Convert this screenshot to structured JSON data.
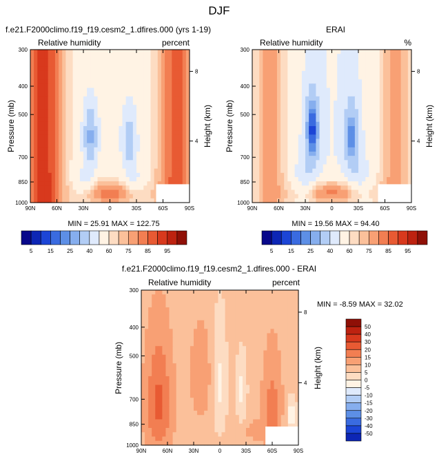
{
  "figure_title": "DJF",
  "chart_data": [
    {
      "type": "heatmap",
      "title": "f.e21.F2000climo.f19_f19.cesm2_1.dfires.000 (yrs 1-19)",
      "left_label": "Relative humidity",
      "right_label": "percent",
      "ylabel": "Pressure (mb)",
      "ylabel_right": "Height (km)",
      "x_ticks": [
        "90N",
        "60N",
        "30N",
        "0",
        "30S",
        "60S",
        "90S"
      ],
      "y_ticks": [
        "300",
        "400",
        "500",
        "700",
        "850",
        "1000"
      ],
      "y_ticks_right": [
        "8",
        "4"
      ],
      "stats": "MIN = 25.91  MAX = 122.75",
      "zlim": [
        25.91,
        122.75
      ]
    },
    {
      "type": "heatmap",
      "title": "ERAI",
      "left_label": "Relative humidity",
      "right_label": "%",
      "ylabel": "Pressure (mb)",
      "ylabel_right": "Height (km)",
      "x_ticks": [
        "90N",
        "60N",
        "30N",
        "0",
        "30S",
        "60S",
        "90S"
      ],
      "y_ticks": [
        "300",
        "400",
        "500",
        "700",
        "850",
        "1000"
      ],
      "y_ticks_right": [
        "8",
        "4"
      ],
      "stats": "MIN = 19.56  MAX = 94.40",
      "zlim": [
        19.56,
        94.4
      ]
    },
    {
      "type": "heatmap",
      "title": "f.e21.F2000climo.f19_f19.cesm2_1.dfires.000 - ERAI",
      "left_label": "Relative humidity",
      "right_label": "percent",
      "ylabel": "Pressure (mb)",
      "ylabel_right": "Height (km)",
      "x_ticks": [
        "90N",
        "60N",
        "30N",
        "0",
        "30S",
        "60S",
        "90S"
      ],
      "y_ticks": [
        "300",
        "400",
        "500",
        "700",
        "850",
        "1000"
      ],
      "y_ticks_right": [
        "8",
        "4"
      ],
      "stats": "MIN = -8.59  MAX = 32.02",
      "zlim": [
        -8.59,
        32.02
      ]
    }
  ],
  "colorbar_main": {
    "labels": [
      "5",
      "15",
      "25",
      "40",
      "60",
      "75",
      "85",
      "95"
    ],
    "colors": [
      "#08088a",
      "#0d26b5",
      "#1c45d6",
      "#3a6be0",
      "#5d8fe6",
      "#86aeee",
      "#b2cdf5",
      "#dfeafc",
      "#fff3e4",
      "#fddcc2",
      "#fbc09a",
      "#f8a074",
      "#f27e52",
      "#e85a33",
      "#d8391d",
      "#bd2210",
      "#8f1007"
    ]
  },
  "colorbar_diff": {
    "labels": [
      "50",
      "40",
      "30",
      "20",
      "15",
      "10",
      "5",
      "0",
      "-5",
      "-10",
      "-15",
      "-20",
      "-30",
      "-40",
      "-50"
    ],
    "colors": [
      "#8f1007",
      "#bd2210",
      "#d8391d",
      "#e85a33",
      "#f27e52",
      "#f8a074",
      "#fbc09a",
      "#fddcc2",
      "#fff3e4",
      "#dfeafc",
      "#b2cdf5",
      "#86aeee",
      "#5d8fe6",
      "#3a6be0",
      "#1c45d6",
      "#0d26b5"
    ]
  }
}
